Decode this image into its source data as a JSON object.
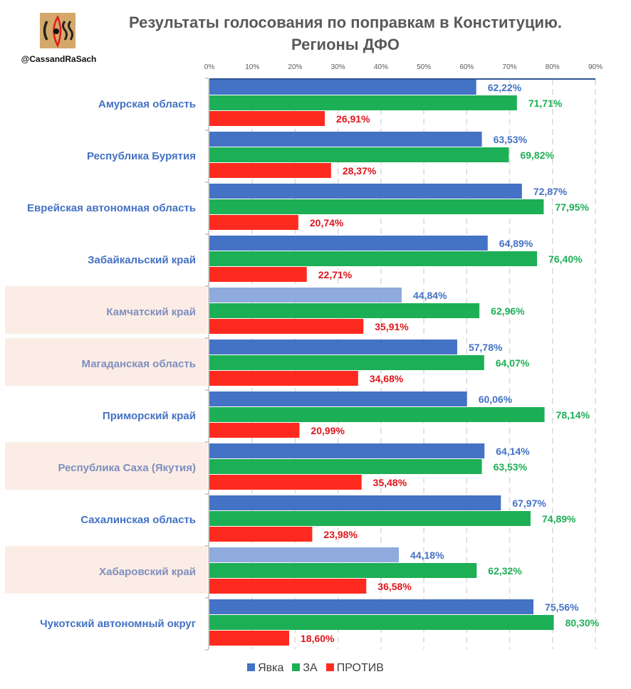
{
  "header": {
    "title_line1": "Результаты голосования по поправкам в Конституцию.",
    "title_line2": "Регионы ДФО",
    "handle": "@CassandRaSach",
    "logo_icon": "cass-eye-logo-icon"
  },
  "colors": {
    "turnout": "#4472c4",
    "turnout_highlight": "#8faadc",
    "for": "#1daf55",
    "against": "#ff2a1f",
    "turnout_label": "#4472c4",
    "for_label": "#1daf55",
    "against_label": "#e0151b",
    "category_label": "#4472c4",
    "category_label_highlight": "#7f8fbd",
    "highlight_band": "#fbece6"
  },
  "chart_data": {
    "type": "bar",
    "orientation": "horizontal",
    "title": "Результаты голосования по поправкам в Конституцию. Регионы ДФО",
    "xlabel": "",
    "ylabel": "",
    "xlim": [
      0,
      90
    ],
    "x_ticks": [
      "0%",
      "10%",
      "20%",
      "30%",
      "40%",
      "50%",
      "60%",
      "70%",
      "80%",
      "90%"
    ],
    "grid": "vertical dashed",
    "legend_position": "bottom",
    "categories": [
      "Амурская область",
      "Республика Бурятия",
      "Еврейская автономная область",
      "Забайкальский край",
      "Камчатский край",
      "Магаданская область",
      "Приморский край",
      "Республика Саха (Якутия)",
      "Сахалинская область",
      "Хабаровский край",
      "Чукотский автономный округ"
    ],
    "highlighted": [
      false,
      false,
      false,
      false,
      true,
      true,
      false,
      true,
      false,
      true,
      false
    ],
    "turnout_low_highlight": [
      false,
      false,
      false,
      false,
      true,
      false,
      false,
      false,
      false,
      true,
      false
    ],
    "series": [
      {
        "name": "Явка",
        "key": "turnout",
        "values": [
          62.22,
          63.53,
          72.87,
          64.89,
          44.84,
          57.78,
          60.06,
          64.14,
          67.97,
          44.18,
          75.56
        ],
        "labels": [
          "62,22%",
          "63,53%",
          "72,87%",
          "64,89%",
          "44,84%",
          "57,78%",
          "60,06%",
          "64,14%",
          "67,97%",
          "44,18%",
          "75,56%"
        ]
      },
      {
        "name": "ЗА",
        "key": "for",
        "values": [
          71.71,
          69.82,
          77.95,
          76.4,
          62.96,
          64.07,
          78.14,
          63.53,
          74.89,
          62.32,
          80.3
        ],
        "labels": [
          "71,71%",
          "69,82%",
          "77,95%",
          "76,40%",
          "62,96%",
          "64,07%",
          "78,14%",
          "63,53%",
          "74,89%",
          "62,32%",
          "80,30%"
        ]
      },
      {
        "name": "ПРОТИВ",
        "key": "against",
        "values": [
          26.91,
          28.37,
          20.74,
          22.71,
          35.91,
          34.68,
          20.99,
          35.48,
          23.98,
          36.58,
          18.6
        ],
        "labels": [
          "26,91%",
          "28,37%",
          "20,74%",
          "22,71%",
          "35,91%",
          "34,68%",
          "20,99%",
          "35,48%",
          "23,98%",
          "36,58%",
          "18,60%"
        ]
      }
    ]
  },
  "legend": [
    {
      "label": "Явка",
      "color": "#4472c4"
    },
    {
      "label": "ЗА",
      "color": "#1daf55"
    },
    {
      "label": "ПРОТИВ",
      "color": "#ff2a1f"
    }
  ]
}
